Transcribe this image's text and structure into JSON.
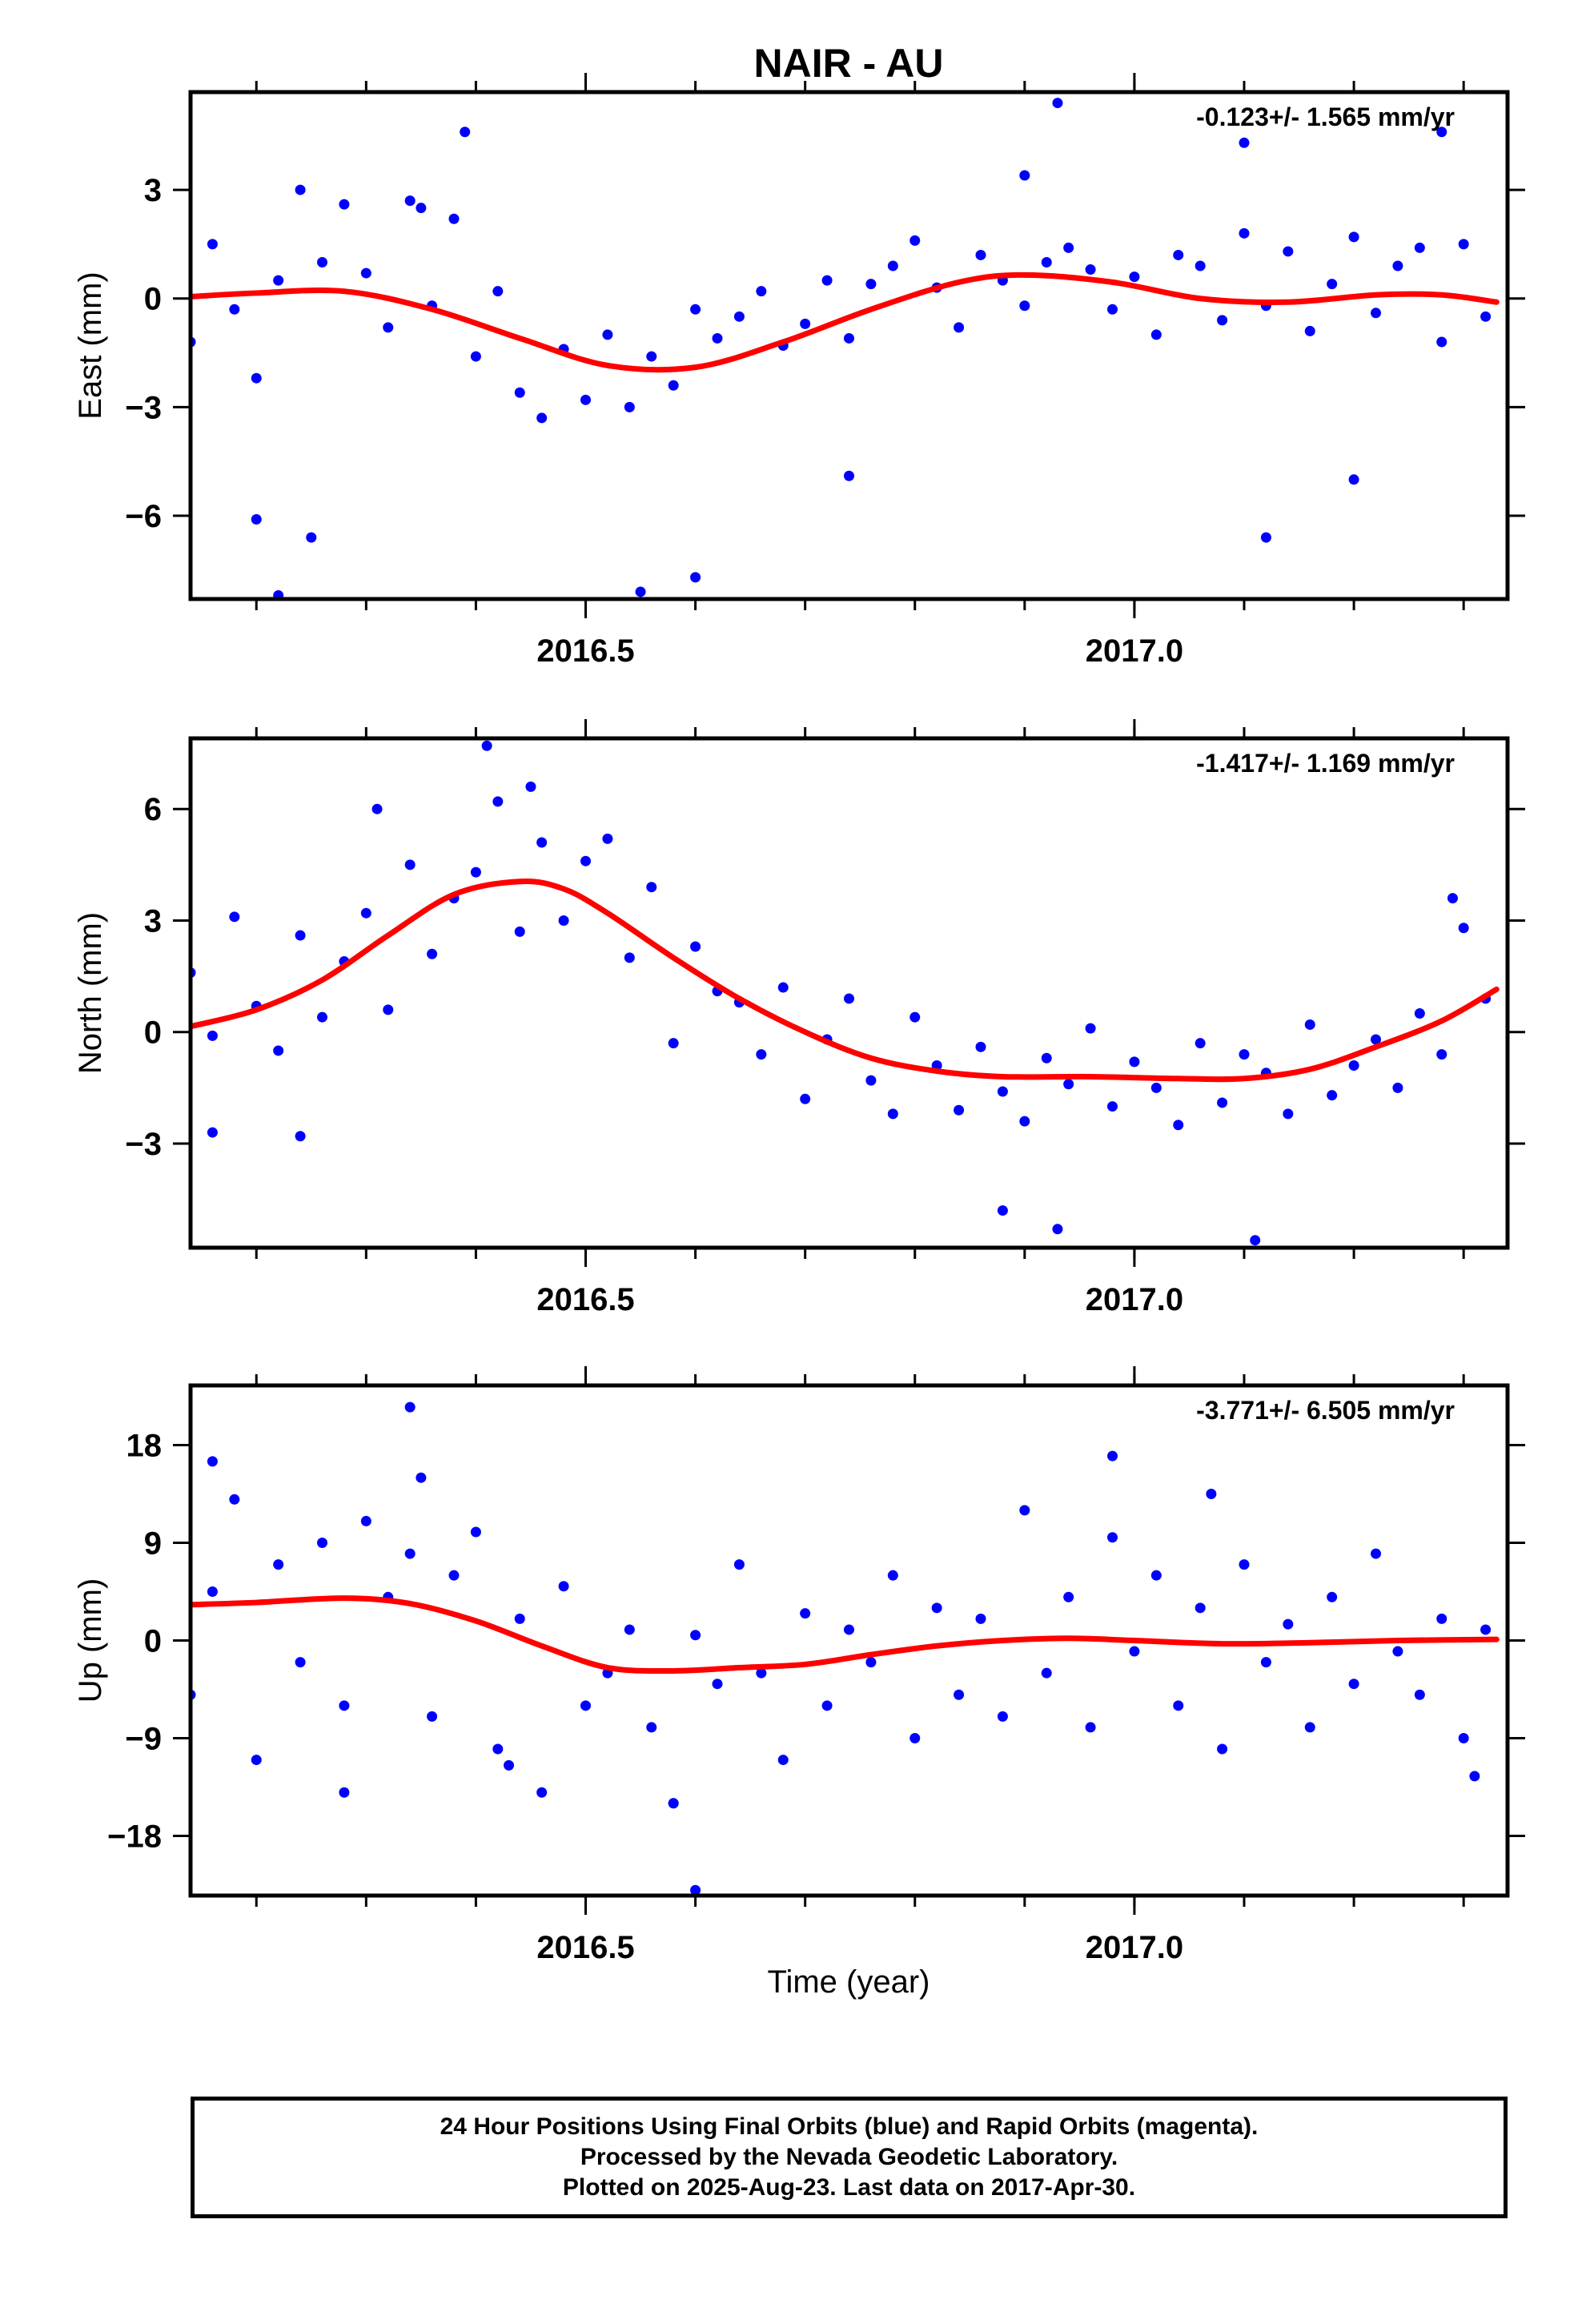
{
  "title": "NAIR - AU",
  "xlabel": "Time (year)",
  "colors": {
    "final_orbits": "#0000ff",
    "model_fit": "#ff0000",
    "frame": "#000000"
  },
  "footer": {
    "line1": "24 Hour Positions Using Final Orbits (blue) and Rapid Orbits (magenta).",
    "line2": "Processed by the Nevada Geodetic Laboratory.",
    "line3": "Plotted on 2025-Aug-23. Last data on 2017-Apr-30."
  },
  "chart_data": [
    {
      "type": "scatter",
      "ylabel": "East (mm)",
      "rate_label": "-0.123+/- 1.565 mm/yr",
      "xlim": [
        2016.14,
        2017.34
      ],
      "ylim": [
        -8.3,
        5.7
      ],
      "xticks": [
        2016.5,
        2017.0
      ],
      "xtick_labels": [
        "2016.5",
        "2017.0"
      ],
      "yticks": [
        3,
        0,
        -3,
        -6
      ],
      "ytick_labels": [
        "3",
        "0",
        "−3",
        "−6"
      ],
      "fit_x": [
        2016.14,
        2016.2,
        2016.28,
        2016.36,
        2016.44,
        2016.52,
        2016.6,
        2016.68,
        2016.76,
        2016.84,
        2016.9,
        2016.98,
        2017.06,
        2017.14,
        2017.22,
        2017.28,
        2017.33
      ],
      "fit_y": [
        0.05,
        0.15,
        0.2,
        -0.3,
        -1.1,
        -1.85,
        -1.9,
        -1.2,
        -0.3,
        0.45,
        0.65,
        0.45,
        0.0,
        -0.1,
        0.1,
        0.1,
        -0.1
      ],
      "points": {
        "x": [
          2016.14,
          2016.16,
          2016.18,
          2016.2,
          2016.22,
          2016.24,
          2016.26,
          2016.28,
          2016.3,
          2016.32,
          2016.34,
          2016.36,
          2016.38,
          2016.4,
          2016.42,
          2016.44,
          2016.46,
          2016.48,
          2016.5,
          2016.52,
          2016.54,
          2016.56,
          2016.58,
          2016.6,
          2016.62,
          2016.64,
          2016.66,
          2016.68,
          2016.7,
          2016.72,
          2016.74,
          2016.76,
          2016.78,
          2016.8,
          2016.82,
          2016.84,
          2016.86,
          2016.88,
          2016.9,
          2016.92,
          2016.94,
          2016.96,
          2016.98,
          2017.0,
          2017.02,
          2017.04,
          2017.06,
          2017.08,
          2017.1,
          2017.12,
          2017.14,
          2017.16,
          2017.18,
          2017.2,
          2017.22,
          2017.24,
          2017.26,
          2017.28,
          2017.3,
          2017.32,
          2016.2,
          2016.22,
          2016.25,
          2016.35,
          2016.39,
          2016.55,
          2016.6,
          2016.74,
          2016.9,
          2016.93,
          2017.1,
          2017.12,
          2017.2,
          2017.28
        ],
        "y": [
          -1.2,
          1.5,
          -0.3,
          -2.2,
          0.5,
          3.0,
          1.0,
          2.6,
          0.7,
          -0.8,
          2.7,
          -0.2,
          2.2,
          -1.6,
          0.2,
          -2.6,
          -3.3,
          -1.4,
          -2.8,
          -1.0,
          -3.0,
          -1.6,
          -2.4,
          -0.3,
          -1.1,
          -0.5,
          0.2,
          -1.3,
          -0.7,
          0.5,
          -1.1,
          0.4,
          0.9,
          1.6,
          0.3,
          -0.8,
          1.2,
          0.5,
          -0.2,
          1.0,
          1.4,
          0.8,
          -0.3,
          0.6,
          -1.0,
          1.2,
          0.9,
          -0.6,
          1.8,
          -0.2,
          1.3,
          -0.9,
          0.4,
          1.7,
          -0.4,
          0.9,
          1.4,
          -1.2,
          1.5,
          -0.5,
          -6.1,
          -8.2,
          -6.6,
          2.5,
          4.6,
          -8.1,
          -7.7,
          -4.9,
          3.4,
          5.4,
          4.3,
          -6.6,
          -5.0,
          4.6
        ]
      }
    },
    {
      "type": "scatter",
      "ylabel": "North (mm)",
      "rate_label": "-1.417+/- 1.169 mm/yr",
      "xlim": [
        2016.14,
        2017.34
      ],
      "ylim": [
        -5.8,
        7.9
      ],
      "xticks": [
        2016.5,
        2017.0
      ],
      "xtick_labels": [
        "2016.5",
        "2017.0"
      ],
      "yticks": [
        6,
        3,
        0,
        -3
      ],
      "ytick_labels": [
        "6",
        "3",
        "0",
        "−3"
      ],
      "fit_x": [
        2016.14,
        2016.2,
        2016.26,
        2016.32,
        2016.38,
        2016.44,
        2016.48,
        2016.52,
        2016.58,
        2016.64,
        2016.7,
        2016.76,
        2016.82,
        2016.88,
        2016.96,
        2017.04,
        2017.1,
        2017.16,
        2017.22,
        2017.28,
        2017.33
      ],
      "fit_y": [
        0.15,
        0.6,
        1.4,
        2.6,
        3.7,
        4.05,
        3.85,
        3.2,
        2.0,
        0.9,
        0.0,
        -0.7,
        -1.05,
        -1.2,
        -1.2,
        -1.25,
        -1.25,
        -1.0,
        -0.4,
        0.3,
        1.15
      ],
      "points": {
        "x": [
          2016.14,
          2016.16,
          2016.18,
          2016.2,
          2016.22,
          2016.24,
          2016.26,
          2016.28,
          2016.3,
          2016.32,
          2016.34,
          2016.36,
          2016.38,
          2016.4,
          2016.42,
          2016.44,
          2016.46,
          2016.48,
          2016.5,
          2016.52,
          2016.54,
          2016.56,
          2016.58,
          2016.6,
          2016.62,
          2016.64,
          2016.66,
          2016.68,
          2016.7,
          2016.72,
          2016.74,
          2016.76,
          2016.78,
          2016.8,
          2016.82,
          2016.84,
          2016.86,
          2016.88,
          2016.9,
          2016.92,
          2016.94,
          2016.96,
          2016.98,
          2017.0,
          2017.02,
          2017.04,
          2017.06,
          2017.08,
          2017.1,
          2017.12,
          2017.14,
          2017.16,
          2017.18,
          2017.2,
          2017.22,
          2017.24,
          2017.26,
          2017.28,
          2017.3,
          2017.32,
          2016.16,
          2016.24,
          2016.31,
          2016.41,
          2016.45,
          2016.88,
          2016.93,
          2017.11,
          2017.29
        ],
        "y": [
          1.6,
          -0.1,
          3.1,
          0.7,
          -0.5,
          2.6,
          0.4,
          1.9,
          3.2,
          0.6,
          4.5,
          2.1,
          3.6,
          4.3,
          6.2,
          2.7,
          5.1,
          3.0,
          4.6,
          5.2,
          2.0,
          3.9,
          -0.3,
          2.3,
          1.1,
          0.8,
          -0.6,
          1.2,
          -1.8,
          -0.2,
          0.9,
          -1.3,
          -2.2,
          0.4,
          -0.9,
          -2.1,
          -0.4,
          -1.6,
          -2.4,
          -0.7,
          -1.4,
          0.1,
          -2.0,
          -0.8,
          -1.5,
          -2.5,
          -0.3,
          -1.9,
          -0.6,
          -1.1,
          -2.2,
          0.2,
          -1.7,
          -0.9,
          -0.2,
          -1.5,
          0.5,
          -0.6,
          2.8,
          0.9,
          -2.7,
          -2.8,
          6.0,
          7.7,
          6.6,
          -4.8,
          -5.3,
          -5.6,
          3.6
        ]
      }
    },
    {
      "type": "scatter",
      "ylabel": "Up (mm)",
      "rate_label": "-3.771+/- 6.505 mm/yr",
      "xlim": [
        2016.14,
        2017.34
      ],
      "ylim": [
        -23.5,
        23.5
      ],
      "xticks": [
        2016.5,
        2017.0
      ],
      "xtick_labels": [
        "2016.5",
        "2017.0"
      ],
      "yticks": [
        18,
        9,
        0,
        -9,
        -18
      ],
      "ytick_labels": [
        "18",
        "9",
        "0",
        "−9",
        "−18"
      ],
      "fit_x": [
        2016.14,
        2016.2,
        2016.28,
        2016.34,
        2016.4,
        2016.46,
        2016.52,
        2016.58,
        2016.64,
        2016.7,
        2016.76,
        2016.82,
        2016.88,
        2016.94,
        2017.0,
        2017.08,
        2017.16,
        2017.24,
        2017.33
      ],
      "fit_y": [
        3.3,
        3.5,
        3.9,
        3.4,
        1.8,
        -0.5,
        -2.5,
        -2.8,
        -2.5,
        -2.2,
        -1.3,
        -0.5,
        0.0,
        0.2,
        0.0,
        -0.3,
        -0.2,
        0.0,
        0.1
      ],
      "points": {
        "x": [
          2016.14,
          2016.16,
          2016.18,
          2016.2,
          2016.22,
          2016.24,
          2016.26,
          2016.28,
          2016.3,
          2016.32,
          2016.34,
          2016.36,
          2016.38,
          2016.4,
          2016.42,
          2016.44,
          2016.46,
          2016.48,
          2016.5,
          2016.52,
          2016.54,
          2016.56,
          2016.58,
          2016.6,
          2016.62,
          2016.64,
          2016.66,
          2016.68,
          2016.7,
          2016.72,
          2016.74,
          2016.76,
          2016.78,
          2016.8,
          2016.82,
          2016.84,
          2016.86,
          2016.88,
          2016.9,
          2016.92,
          2016.94,
          2016.96,
          2016.98,
          2017.0,
          2017.02,
          2017.04,
          2017.06,
          2017.08,
          2017.1,
          2017.12,
          2017.14,
          2017.16,
          2017.18,
          2017.2,
          2017.22,
          2017.24,
          2017.26,
          2017.28,
          2017.3,
          2017.32,
          2016.16,
          2016.34,
          2016.35,
          2016.6,
          2016.98,
          2017.07,
          2017.31,
          2016.58,
          2016.43,
          2016.28
        ],
        "y": [
          -5.0,
          4.5,
          13.0,
          -11.0,
          7.0,
          -2.0,
          9.0,
          -6.0,
          11.0,
          4.0,
          8.0,
          -7.0,
          6.0,
          10.0,
          -10.0,
          2.0,
          -14.0,
          5.0,
          -6.0,
          -3.0,
          1.0,
          -8.0,
          -15.0,
          0.5,
          -4.0,
          7.0,
          -3.0,
          -11.0,
          2.5,
          -6.0,
          1.0,
          -2.0,
          6.0,
          -9.0,
          3.0,
          -5.0,
          2.0,
          -7.0,
          12.0,
          -3.0,
          4.0,
          -8.0,
          9.5,
          -1.0,
          6.0,
          -6.0,
          3.0,
          -10.0,
          7.0,
          -2.0,
          1.5,
          -8.0,
          4.0,
          -4.0,
          8.0,
          -1.0,
          -5.0,
          2.0,
          -9.0,
          1.0,
          16.5,
          21.5,
          15.0,
          -23.0,
          17.0,
          13.5,
          -12.5,
          -15.0,
          -11.5,
          -14.0
        ]
      }
    }
  ]
}
